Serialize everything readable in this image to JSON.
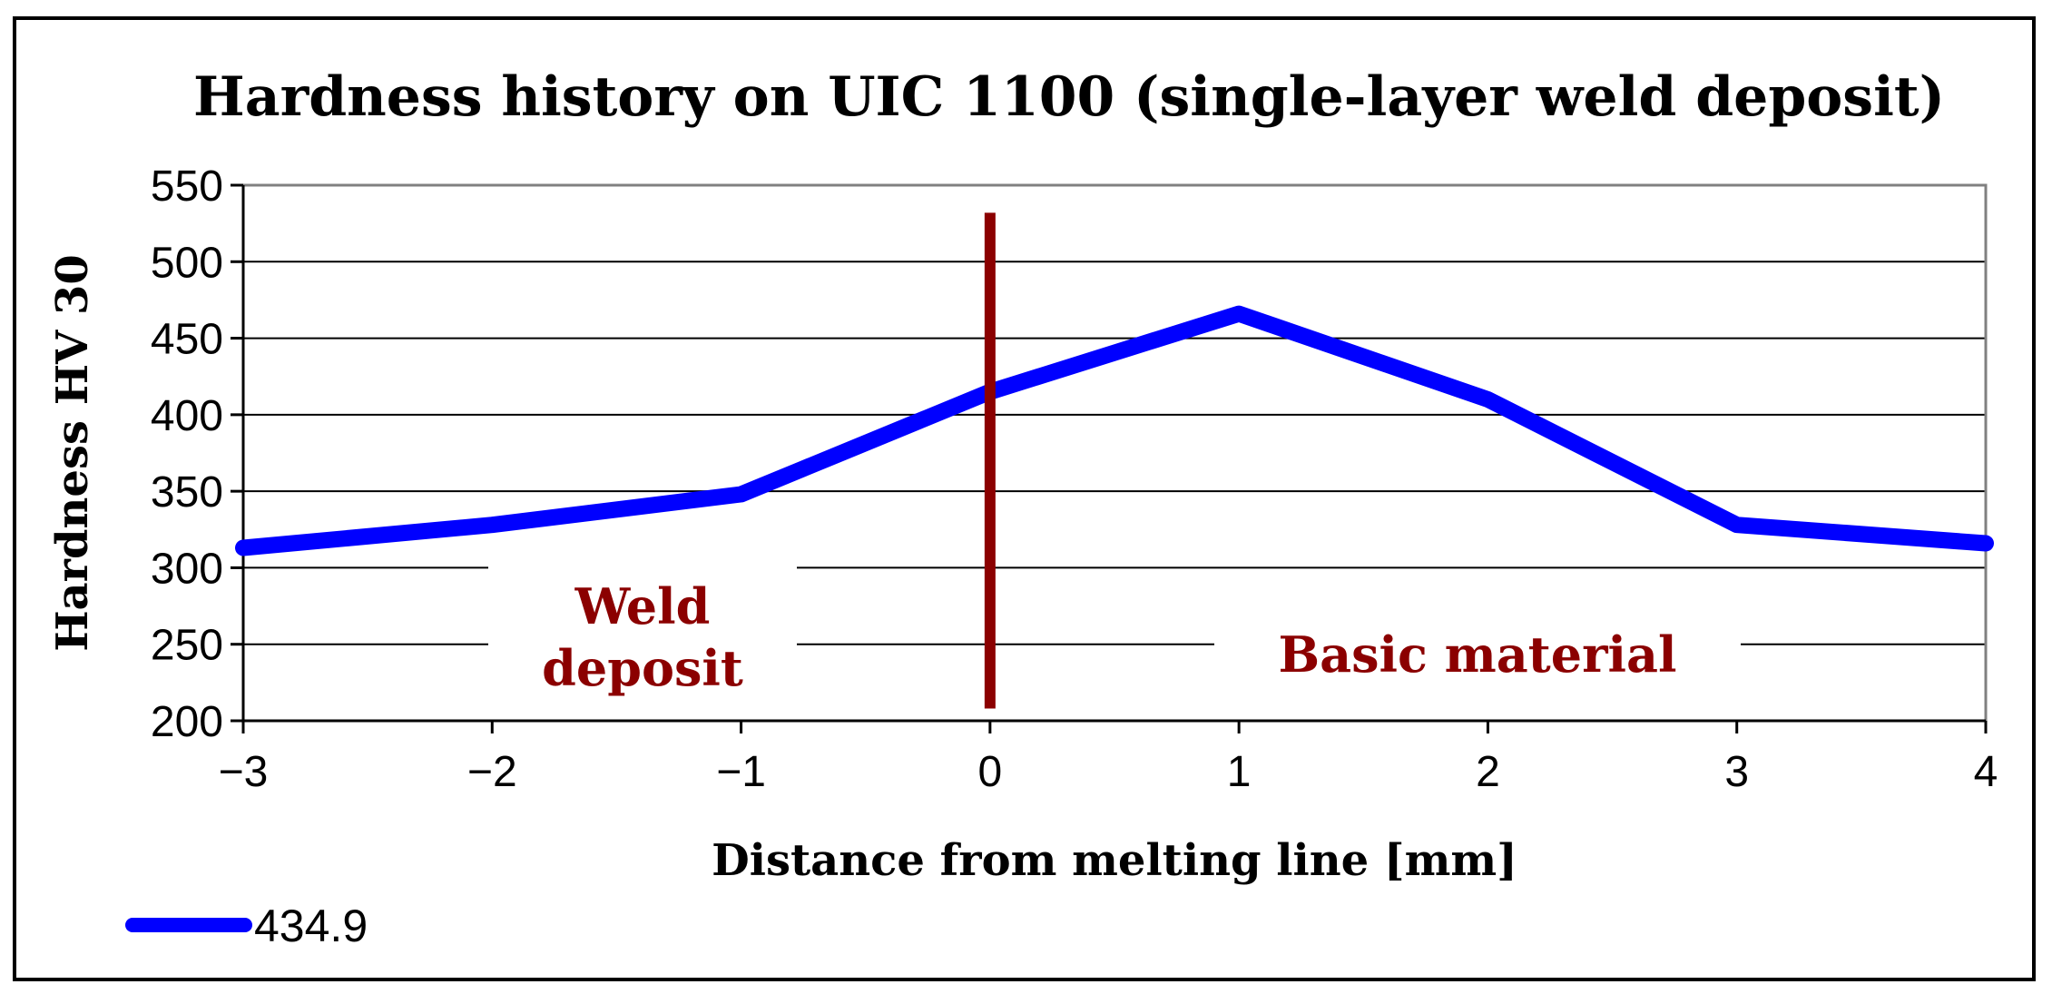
{
  "chart_data": {
    "type": "line",
    "title": "Hardness history on UIC 1100 (single-layer weld deposit)",
    "xlabel": "Distance from melting line [mm]",
    "ylabel": "Hardness HV 30",
    "xlim": [
      -3,
      4
    ],
    "ylim": [
      200,
      550
    ],
    "x_ticks": [
      -3,
      -2,
      -1,
      0,
      1,
      2,
      3,
      4
    ],
    "x_tick_labels": [
      "−3",
      "−2",
      "−1",
      "0",
      "1",
      "2",
      "3",
      "4"
    ],
    "y_ticks": [
      200,
      250,
      300,
      350,
      400,
      450,
      500,
      550
    ],
    "grid": true,
    "legend_position": "bottom-left",
    "series": [
      {
        "name": "434.9",
        "color": "#0000ff",
        "x": [
          -3,
          -2,
          -1,
          0,
          1,
          2,
          3,
          4
        ],
        "y": [
          313,
          328,
          348,
          415,
          466,
          410,
          328,
          316
        ]
      }
    ],
    "vertical_marker": {
      "x": 0,
      "y_range": [
        208,
        532
      ],
      "color": "#8b0000"
    },
    "annotations": {
      "weld_deposit_line1": "Weld",
      "weld_deposit_line2": "deposit",
      "basic_material": "Basic material"
    }
  }
}
